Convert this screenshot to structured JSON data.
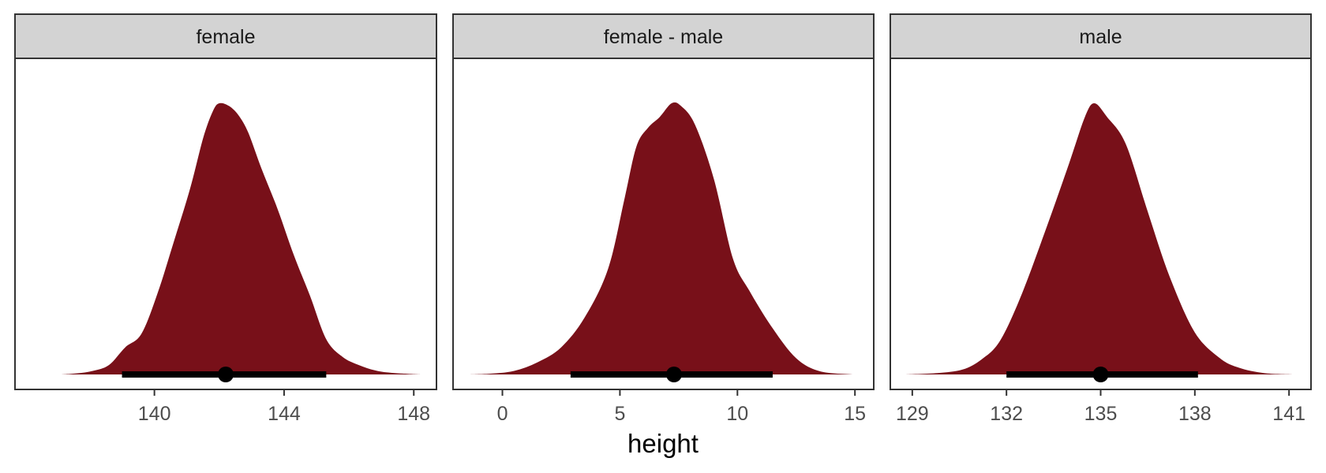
{
  "chart_data": {
    "type": "area",
    "xlabel": "height",
    "ylabel": "",
    "grid": false,
    "fill_color": "#781019",
    "interval_color": "#000000",
    "facets": [
      {
        "name": "female",
        "xlim": [
          135.7,
          148.7
        ],
        "ticks": [
          140,
          144,
          148
        ],
        "tick_labels": [
          "140",
          "144",
          "148"
        ],
        "density_points": [
          [
            137.1,
            0.0
          ],
          [
            137.6,
            0.004
          ],
          [
            138.1,
            0.013
          ],
          [
            138.6,
            0.035
          ],
          [
            139.1,
            0.1
          ],
          [
            139.6,
            0.15
          ],
          [
            140.1,
            0.3
          ],
          [
            140.6,
            0.49
          ],
          [
            141.1,
            0.685
          ],
          [
            141.5,
            0.87
          ],
          [
            141.8,
            0.97
          ],
          [
            142.0,
            1.0
          ],
          [
            142.3,
            0.99
          ],
          [
            142.6,
            0.955
          ],
          [
            142.9,
            0.89
          ],
          [
            143.3,
            0.76
          ],
          [
            143.8,
            0.61
          ],
          [
            144.3,
            0.44
          ],
          [
            144.8,
            0.29
          ],
          [
            145.3,
            0.13
          ],
          [
            145.8,
            0.065
          ],
          [
            146.3,
            0.035
          ],
          [
            146.8,
            0.015
          ],
          [
            147.3,
            0.006
          ],
          [
            148.2,
            0.0
          ]
        ],
        "point": 142.2,
        "interval": [
          139.0,
          145.3
        ]
      },
      {
        "name": "female - male",
        "xlim": [
          -2.1,
          15.8
        ],
        "ticks": [
          0,
          5,
          10,
          15
        ],
        "tick_labels": [
          "0",
          "5",
          "10",
          "15"
        ],
        "density_points": [
          [
            -1.4,
            0.0
          ],
          [
            -0.5,
            0.003
          ],
          [
            0.5,
            0.013
          ],
          [
            1.5,
            0.045
          ],
          [
            2.5,
            0.1
          ],
          [
            3.5,
            0.21
          ],
          [
            4.5,
            0.39
          ],
          [
            5.2,
            0.65
          ],
          [
            5.7,
            0.84
          ],
          [
            6.2,
            0.91
          ],
          [
            6.7,
            0.95
          ],
          [
            7.2,
            1.0
          ],
          [
            7.6,
            0.99
          ],
          [
            8.2,
            0.92
          ],
          [
            9.0,
            0.72
          ],
          [
            9.8,
            0.43
          ],
          [
            10.5,
            0.31
          ],
          [
            11.5,
            0.17
          ],
          [
            12.5,
            0.06
          ],
          [
            13.5,
            0.012
          ],
          [
            14.9,
            0.0
          ]
        ],
        "point": 7.3,
        "interval": [
          2.9,
          11.5
        ]
      },
      {
        "name": "male",
        "xlim": [
          128.3,
          141.7
        ],
        "ticks": [
          129,
          132,
          135,
          138,
          141
        ],
        "tick_labels": [
          "129",
          "132",
          "135",
          "138",
          "141"
        ],
        "density_points": [
          [
            128.8,
            0.0
          ],
          [
            129.8,
            0.005
          ],
          [
            130.6,
            0.018
          ],
          [
            131.2,
            0.055
          ],
          [
            131.8,
            0.125
          ],
          [
            132.5,
            0.3
          ],
          [
            133.3,
            0.55
          ],
          [
            134.0,
            0.78
          ],
          [
            134.5,
            0.95
          ],
          [
            134.8,
            1.0
          ],
          [
            135.2,
            0.95
          ],
          [
            135.8,
            0.85
          ],
          [
            136.5,
            0.6
          ],
          [
            137.2,
            0.36
          ],
          [
            138.0,
            0.155
          ],
          [
            138.8,
            0.06
          ],
          [
            139.4,
            0.025
          ],
          [
            140.2,
            0.005
          ],
          [
            141.1,
            0.0
          ]
        ],
        "point": 135.0,
        "interval": [
          132.0,
          138.1
        ]
      }
    ]
  }
}
